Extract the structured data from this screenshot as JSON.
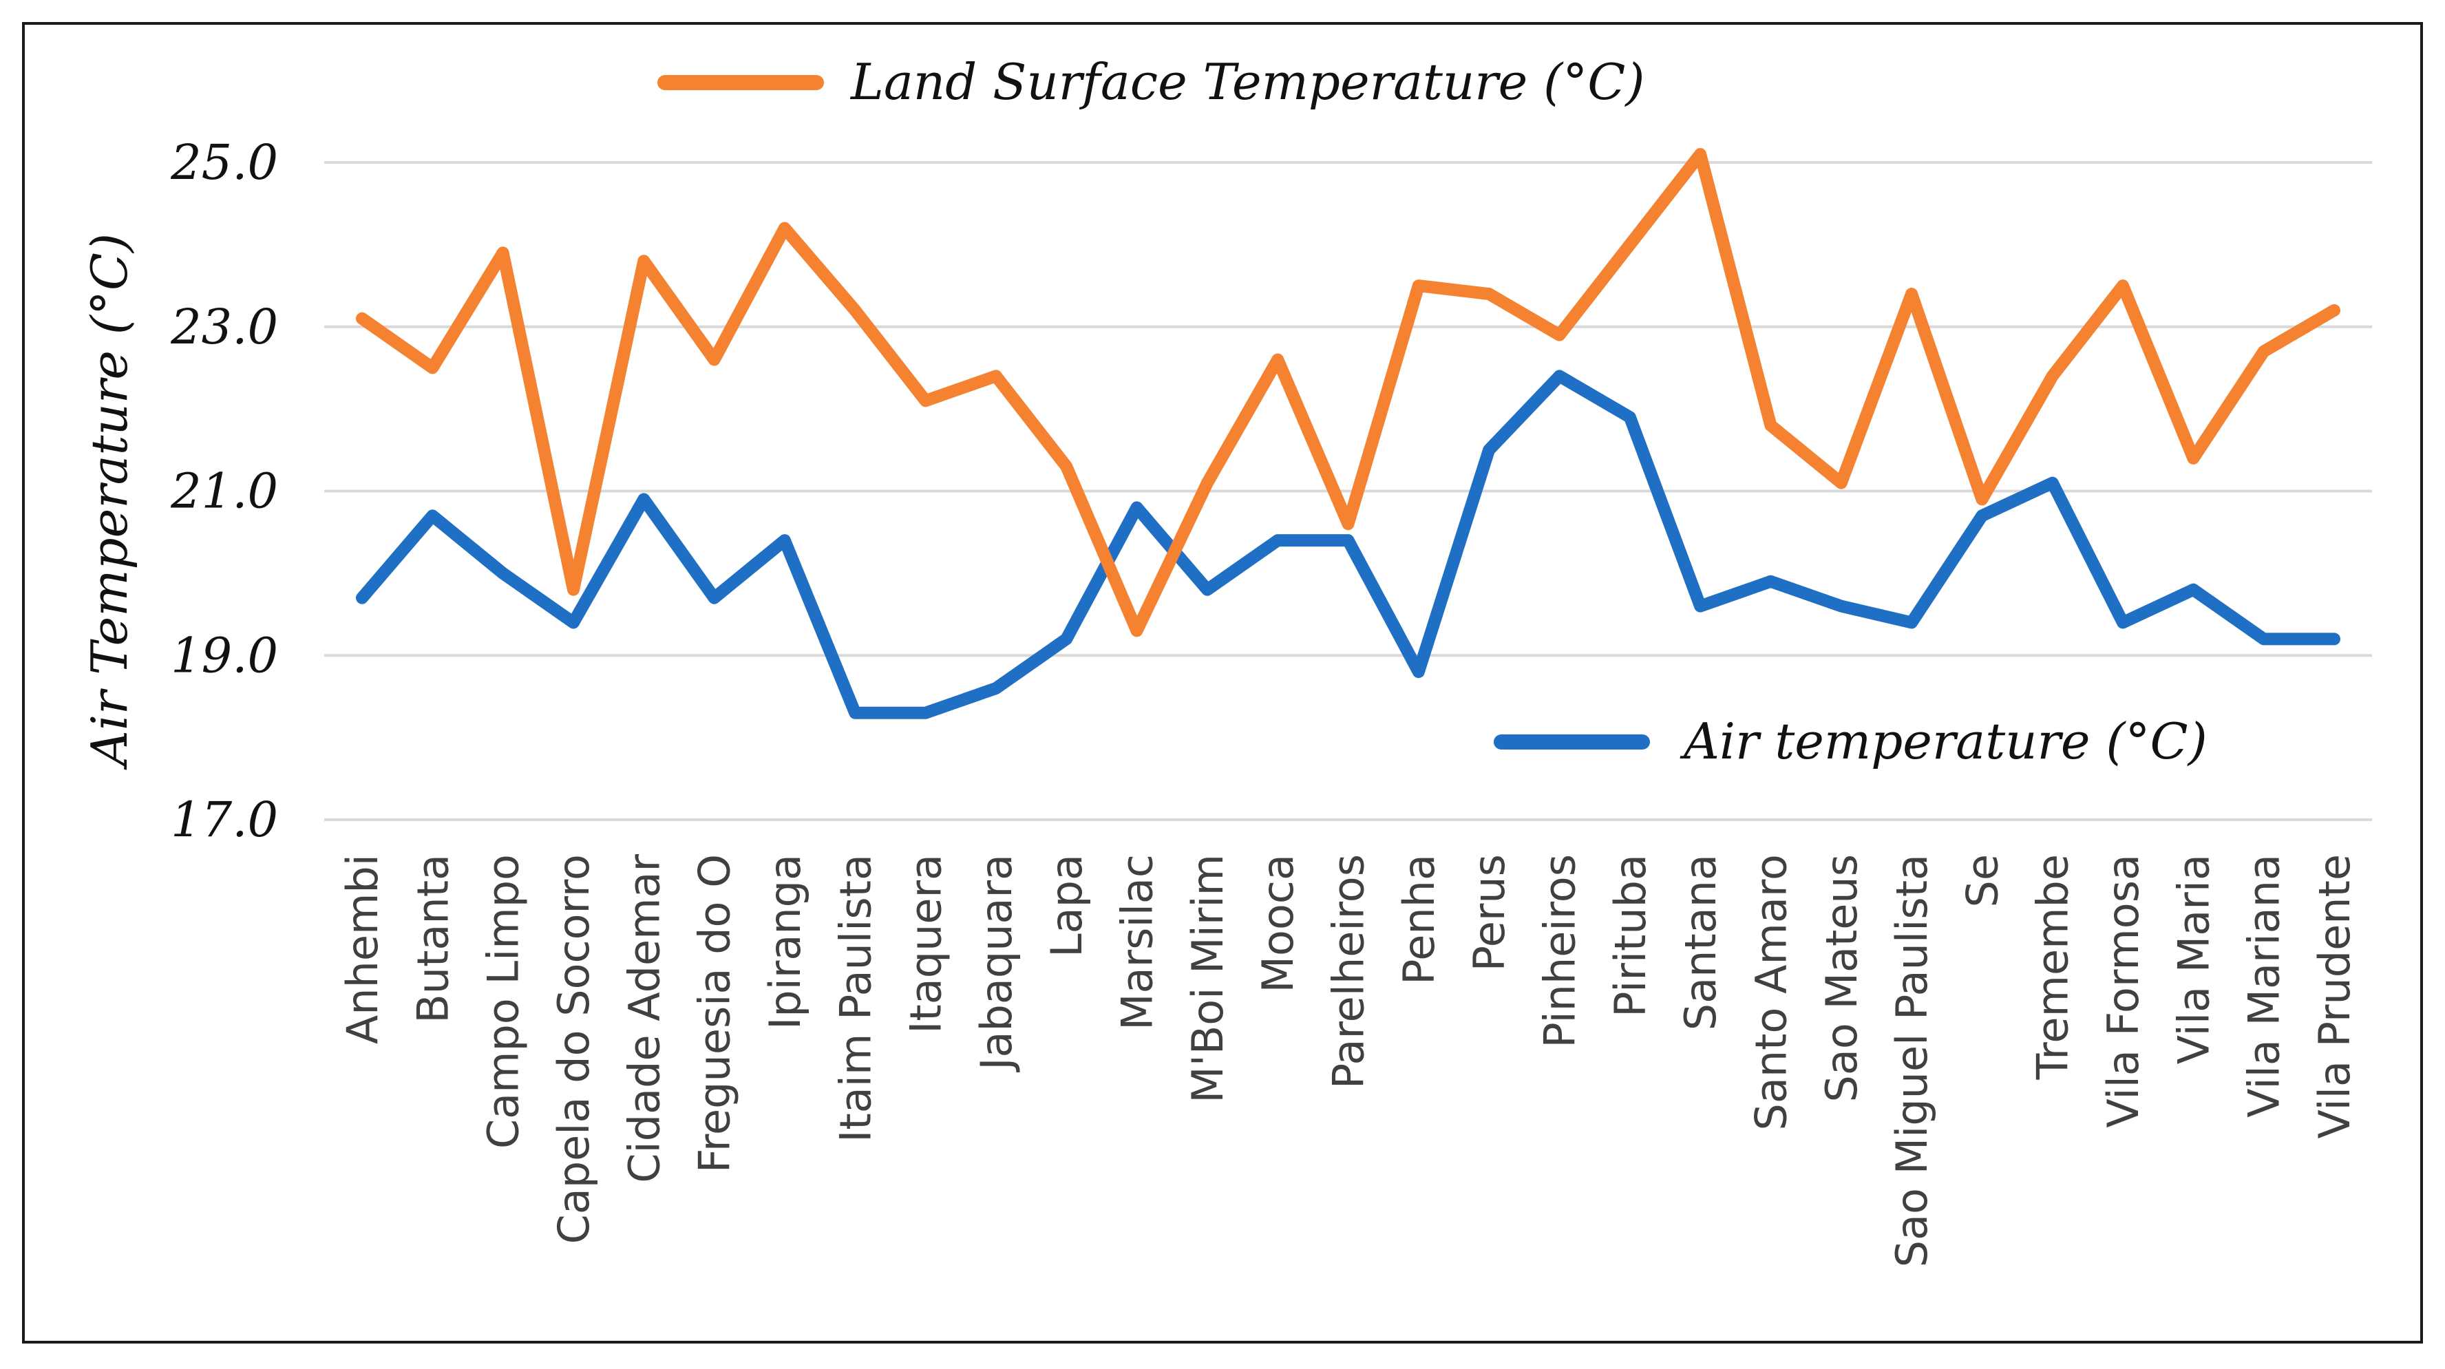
{
  "chart_data": {
    "type": "line",
    "title": "",
    "xlabel": "",
    "ylabel": "Air Temperature (°C)",
    "ylim": [
      17.0,
      25.0
    ],
    "yticks": [
      "25.0",
      "23.0",
      "21.0",
      "19.0",
      "17.0"
    ],
    "ytick_values": [
      25,
      23,
      21,
      19,
      17
    ],
    "grid": true,
    "legend_position": "inline (top-center for orange, right-lower for blue)",
    "categories": [
      "Anhembi",
      "Butanta",
      "Campo Limpo",
      "Capela do Socorro",
      "Cidade Ademar",
      "Freguesia do O",
      "Ipiranga",
      "Itaim Paulista",
      "Itaquera",
      "Jabaquara",
      "Lapa",
      "Marsilac",
      "M'Boi Mirim",
      "Mooca",
      "Parelheiros",
      "Penha",
      "Perus",
      "Pinheiros",
      "Pirituba",
      "Santana",
      "Santo Amaro",
      "Sao Mateus",
      "Sao Miguel Paulista",
      "Se",
      "Tremembe",
      "Vila Formosa",
      "Vila Maria",
      "Vila Mariana",
      "Vila Prudente"
    ],
    "series": [
      {
        "name": "Land Surface Temperature (°C)",
        "color": "#f58231",
        "values": [
          23.1,
          22.5,
          23.9,
          19.8,
          23.8,
          22.6,
          24.2,
          23.2,
          22.1,
          22.4,
          21.3,
          19.3,
          21.1,
          22.6,
          20.6,
          23.5,
          23.4,
          22.9,
          24.0,
          25.1,
          21.8,
          21.1,
          23.4,
          20.9,
          22.4,
          23.5,
          21.4,
          22.7,
          23.2
        ]
      },
      {
        "name": "Air temperature (°C)",
        "color": "#1f6fc5",
        "values": [
          19.7,
          20.7,
          20.0,
          19.4,
          20.9,
          19.7,
          20.4,
          18.3,
          18.3,
          18.6,
          19.2,
          20.8,
          19.8,
          20.4,
          20.4,
          18.8,
          21.5,
          22.4,
          21.9,
          19.6,
          19.9,
          19.6,
          19.4,
          20.7,
          21.1,
          19.4,
          19.8,
          19.2,
          19.2
        ]
      }
    ]
  }
}
